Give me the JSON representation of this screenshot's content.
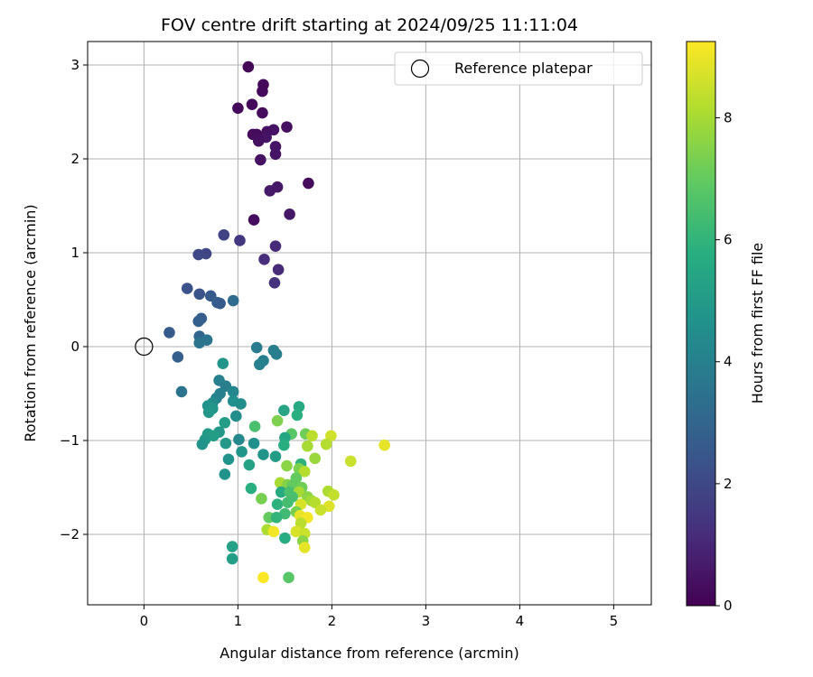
{
  "chart_data": {
    "type": "scatter",
    "title": "FOV centre drift starting at 2024/09/25 11:11:04",
    "xlabel": "Angular distance from reference (arcmin)",
    "ylabel": "Rotation from reference (arcmin)",
    "xlim": [
      -0.6,
      5.4
    ],
    "ylim": [
      -2.75,
      3.25
    ],
    "xticks": [
      0,
      1,
      2,
      3,
      4,
      5
    ],
    "yticks": [
      -2,
      -1,
      0,
      1,
      2,
      3
    ],
    "grid": true,
    "legend": {
      "placement": "top-right",
      "entries": [
        "Reference platepar"
      ]
    },
    "reference_point": {
      "label": "Reference platepar",
      "x": 0.0,
      "y": 0.0
    },
    "colorbar": {
      "label": "Hours from first FF file",
      "colormap": "viridis",
      "range": [
        0,
        9.25
      ],
      "ticks": [
        0,
        2,
        4,
        6,
        8
      ]
    },
    "points": [
      {
        "x": 1.11,
        "y": 2.98,
        "c": 0.1
      },
      {
        "x": 1.27,
        "y": 2.79,
        "c": 0.2
      },
      {
        "x": 1.26,
        "y": 2.72,
        "c": 0.2
      },
      {
        "x": 1.15,
        "y": 2.58,
        "c": 0.3
      },
      {
        "x": 1.0,
        "y": 2.54,
        "c": 0.2
      },
      {
        "x": 1.26,
        "y": 2.49,
        "c": 0.3
      },
      {
        "x": 1.52,
        "y": 2.34,
        "c": 0.4
      },
      {
        "x": 1.38,
        "y": 2.31,
        "c": 0.5
      },
      {
        "x": 1.31,
        "y": 2.29,
        "c": 0.4
      },
      {
        "x": 1.2,
        "y": 2.26,
        "c": 0.3
      },
      {
        "x": 1.16,
        "y": 2.26,
        "c": 0.3
      },
      {
        "x": 1.3,
        "y": 2.23,
        "c": 0.5
      },
      {
        "x": 1.22,
        "y": 2.19,
        "c": 0.4
      },
      {
        "x": 1.4,
        "y": 2.13,
        "c": 0.5
      },
      {
        "x": 1.4,
        "y": 2.05,
        "c": 0.5
      },
      {
        "x": 1.24,
        "y": 1.99,
        "c": 0.4
      },
      {
        "x": 1.75,
        "y": 1.74,
        "c": 0.3
      },
      {
        "x": 1.42,
        "y": 1.7,
        "c": 0.6
      },
      {
        "x": 1.34,
        "y": 1.66,
        "c": 0.6
      },
      {
        "x": 1.55,
        "y": 1.41,
        "c": 0.6
      },
      {
        "x": 1.17,
        "y": 1.35,
        "c": 0.3
      },
      {
        "x": 0.85,
        "y": 1.19,
        "c": 1.8
      },
      {
        "x": 1.02,
        "y": 1.13,
        "c": 1.5
      },
      {
        "x": 1.4,
        "y": 1.07,
        "c": 1.1
      },
      {
        "x": 0.66,
        "y": 0.99,
        "c": 1.9
      },
      {
        "x": 0.58,
        "y": 0.98,
        "c": 2.0
      },
      {
        "x": 1.28,
        "y": 0.93,
        "c": 1.2
      },
      {
        "x": 1.43,
        "y": 0.82,
        "c": 1.1
      },
      {
        "x": 1.39,
        "y": 0.68,
        "c": 1.3
      },
      {
        "x": 0.46,
        "y": 0.62,
        "c": 2.3
      },
      {
        "x": 0.59,
        "y": 0.56,
        "c": 2.4
      },
      {
        "x": 0.71,
        "y": 0.54,
        "c": 2.6
      },
      {
        "x": 0.95,
        "y": 0.49,
        "c": 3.2
      },
      {
        "x": 0.78,
        "y": 0.47,
        "c": 2.7
      },
      {
        "x": 0.81,
        "y": 0.46,
        "c": 2.6
      },
      {
        "x": 0.61,
        "y": 0.3,
        "c": 2.7
      },
      {
        "x": 0.58,
        "y": 0.27,
        "c": 2.8
      },
      {
        "x": 0.27,
        "y": 0.15,
        "c": 2.6
      },
      {
        "x": 0.59,
        "y": 0.11,
        "c": 3.0
      },
      {
        "x": 0.67,
        "y": 0.07,
        "c": 3.5
      },
      {
        "x": 0.59,
        "y": 0.04,
        "c": 3.5
      },
      {
        "x": 1.2,
        "y": -0.01,
        "c": 3.8
      },
      {
        "x": 1.38,
        "y": -0.04,
        "c": 3.9
      },
      {
        "x": 1.41,
        "y": -0.08,
        "c": 3.9
      },
      {
        "x": 0.36,
        "y": -0.11,
        "c": 2.8
      },
      {
        "x": 1.27,
        "y": -0.15,
        "c": 4.0
      },
      {
        "x": 1.23,
        "y": -0.19,
        "c": 4.0
      },
      {
        "x": 0.84,
        "y": -0.18,
        "c": 4.8
      },
      {
        "x": 0.8,
        "y": -0.36,
        "c": 4.0
      },
      {
        "x": 0.87,
        "y": -0.42,
        "c": 3.9
      },
      {
        "x": 0.4,
        "y": -0.48,
        "c": 3.5
      },
      {
        "x": 0.95,
        "y": -0.48,
        "c": 4.2
      },
      {
        "x": 0.81,
        "y": -0.5,
        "c": 4.0
      },
      {
        "x": 0.77,
        "y": -0.55,
        "c": 4.1
      },
      {
        "x": 0.95,
        "y": -0.58,
        "c": 4.6
      },
      {
        "x": 0.73,
        "y": -0.6,
        "c": 4.4
      },
      {
        "x": 1.03,
        "y": -0.61,
        "c": 4.5
      },
      {
        "x": 0.68,
        "y": -0.63,
        "c": 4.7
      },
      {
        "x": 0.73,
        "y": -0.66,
        "c": 4.8
      },
      {
        "x": 0.69,
        "y": -0.7,
        "c": 4.9
      },
      {
        "x": 0.98,
        "y": -0.74,
        "c": 4.5
      },
      {
        "x": 1.49,
        "y": -0.68,
        "c": 5.4
      },
      {
        "x": 1.65,
        "y": -0.64,
        "c": 5.6
      },
      {
        "x": 1.63,
        "y": -0.73,
        "c": 5.8
      },
      {
        "x": 1.42,
        "y": -0.79,
        "c": 7.4
      },
      {
        "x": 0.86,
        "y": -0.81,
        "c": 5.1
      },
      {
        "x": 1.18,
        "y": -0.85,
        "c": 6.5
      },
      {
        "x": 0.8,
        "y": -0.91,
        "c": 4.9
      },
      {
        "x": 0.68,
        "y": -0.93,
        "c": 5.0
      },
      {
        "x": 0.74,
        "y": -0.95,
        "c": 5.1
      },
      {
        "x": 1.57,
        "y": -0.93,
        "c": 6.8
      },
      {
        "x": 1.72,
        "y": -0.93,
        "c": 7.2
      },
      {
        "x": 1.79,
        "y": -0.95,
        "c": 8.3
      },
      {
        "x": 1.99,
        "y": -0.95,
        "c": 8.6
      },
      {
        "x": 1.5,
        "y": -0.97,
        "c": 5.5
      },
      {
        "x": 0.65,
        "y": -0.99,
        "c": 4.9
      },
      {
        "x": 1.01,
        "y": -0.99,
        "c": 4.3
      },
      {
        "x": 0.87,
        "y": -1.03,
        "c": 4.9
      },
      {
        "x": 1.17,
        "y": -1.03,
        "c": 4.6
      },
      {
        "x": 0.62,
        "y": -1.04,
        "c": 4.7
      },
      {
        "x": 1.49,
        "y": -1.05,
        "c": 5.8
      },
      {
        "x": 1.74,
        "y": -1.06,
        "c": 8.0
      },
      {
        "x": 1.94,
        "y": -1.04,
        "c": 8.2
      },
      {
        "x": 2.56,
        "y": -1.05,
        "c": 8.9
      },
      {
        "x": 1.04,
        "y": -1.12,
        "c": 4.8
      },
      {
        "x": 1.27,
        "y": -1.15,
        "c": 4.8
      },
      {
        "x": 1.4,
        "y": -1.17,
        "c": 5.1
      },
      {
        "x": 1.82,
        "y": -1.19,
        "c": 7.8
      },
      {
        "x": 0.9,
        "y": -1.2,
        "c": 4.7
      },
      {
        "x": 1.67,
        "y": -1.25,
        "c": 5.9
      },
      {
        "x": 2.2,
        "y": -1.22,
        "c": 8.5
      },
      {
        "x": 1.12,
        "y": -1.26,
        "c": 5.3
      },
      {
        "x": 1.52,
        "y": -1.27,
        "c": 7.6
      },
      {
        "x": 1.65,
        "y": -1.3,
        "c": 7.4
      },
      {
        "x": 1.71,
        "y": -1.33,
        "c": 8.2
      },
      {
        "x": 0.86,
        "y": -1.36,
        "c": 4.7
      },
      {
        "x": 1.62,
        "y": -1.4,
        "c": 7.0
      },
      {
        "x": 1.45,
        "y": -1.45,
        "c": 8.0
      },
      {
        "x": 1.53,
        "y": -1.47,
        "c": 7.5
      },
      {
        "x": 1.58,
        "y": -1.48,
        "c": 7.0
      },
      {
        "x": 1.68,
        "y": -1.5,
        "c": 7.2
      },
      {
        "x": 1.14,
        "y": -1.51,
        "c": 5.8
      },
      {
        "x": 1.46,
        "y": -1.55,
        "c": 5.6
      },
      {
        "x": 1.55,
        "y": -1.55,
        "c": 6.5
      },
      {
        "x": 1.65,
        "y": -1.55,
        "c": 8.0
      },
      {
        "x": 1.96,
        "y": -1.54,
        "c": 8.1
      },
      {
        "x": 2.02,
        "y": -1.58,
        "c": 8.4
      },
      {
        "x": 1.58,
        "y": -1.6,
        "c": 6.5
      },
      {
        "x": 1.74,
        "y": -1.6,
        "c": 7.6
      },
      {
        "x": 1.78,
        "y": -1.64,
        "c": 7.9
      },
      {
        "x": 1.25,
        "y": -1.62,
        "c": 7.3
      },
      {
        "x": 1.82,
        "y": -1.66,
        "c": 8.2
      },
      {
        "x": 1.42,
        "y": -1.68,
        "c": 5.9
      },
      {
        "x": 1.53,
        "y": -1.66,
        "c": 6.4
      },
      {
        "x": 1.67,
        "y": -1.68,
        "c": 8.7
      },
      {
        "x": 1.97,
        "y": -1.7,
        "c": 8.8
      },
      {
        "x": 1.88,
        "y": -1.74,
        "c": 8.5
      },
      {
        "x": 1.62,
        "y": -1.76,
        "c": 7.3
      },
      {
        "x": 1.5,
        "y": -1.78,
        "c": 6.3
      },
      {
        "x": 1.66,
        "y": -1.8,
        "c": 8.9
      },
      {
        "x": 1.33,
        "y": -1.82,
        "c": 7.0
      },
      {
        "x": 1.41,
        "y": -1.82,
        "c": 6.0
      },
      {
        "x": 1.74,
        "y": -1.82,
        "c": 9.1
      },
      {
        "x": 1.67,
        "y": -1.88,
        "c": 8.3
      },
      {
        "x": 1.31,
        "y": -1.95,
        "c": 8.1
      },
      {
        "x": 1.38,
        "y": -1.97,
        "c": 9.1
      },
      {
        "x": 1.62,
        "y": -1.97,
        "c": 8.7
      },
      {
        "x": 1.71,
        "y": -1.99,
        "c": 8.5
      },
      {
        "x": 1.5,
        "y": -2.04,
        "c": 5.7
      },
      {
        "x": 1.69,
        "y": -2.07,
        "c": 7.6
      },
      {
        "x": 0.94,
        "y": -2.13,
        "c": 5.3
      },
      {
        "x": 1.71,
        "y": -2.14,
        "c": 8.9
      },
      {
        "x": 0.94,
        "y": -2.26,
        "c": 5.1
      },
      {
        "x": 1.27,
        "y": -2.46,
        "c": 9.2
      },
      {
        "x": 1.54,
        "y": -2.46,
        "c": 6.8
      }
    ]
  }
}
